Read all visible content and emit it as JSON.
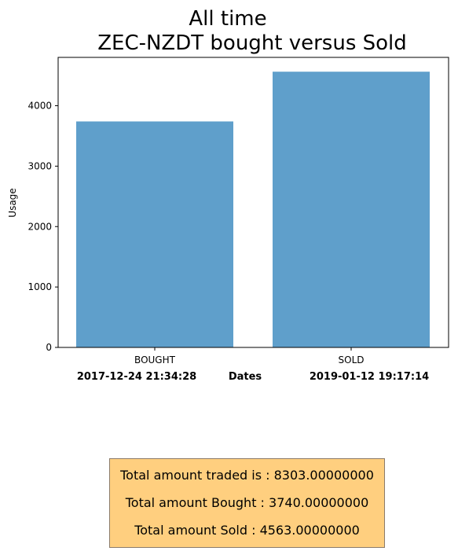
{
  "chart_data": {
    "type": "bar",
    "title_lines": [
      "All time",
      "ZEC-NZDT bought versus Sold"
    ],
    "categories": [
      "BOUGHT",
      "SOLD"
    ],
    "values": [
      3740,
      4563
    ],
    "ylabel": "Usage",
    "ylim": [
      0,
      4800
    ],
    "yticks": [
      0,
      1000,
      2000,
      3000,
      4000
    ],
    "bar_color": "#5f9fcb",
    "grid": false,
    "date_labels": {
      "left": "2017-12-24 21:34:28",
      "center": "Dates",
      "right": "2019-01-12 19:17:14"
    }
  },
  "summary": {
    "traded": "Total amount traded is : 8303.00000000",
    "bought": "Total amount Bought : 3740.00000000",
    "sold": "Total amount Sold : 4563.00000000",
    "box_color": "#ffcf7f"
  }
}
